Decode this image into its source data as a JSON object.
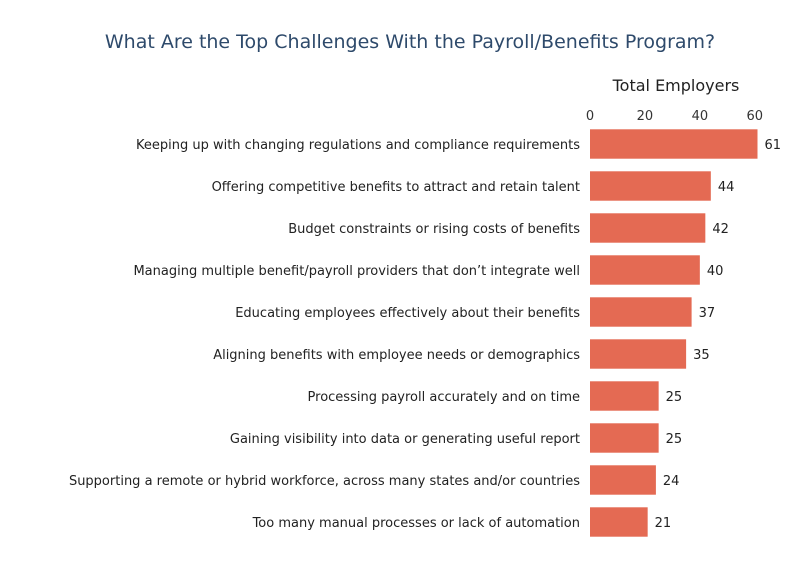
{
  "chart_data": {
    "type": "bar",
    "orientation": "horizontal",
    "title": "What Are the Top Challenges With the Payroll/Benefits Program?",
    "xlabel": "Total Employers",
    "ylabel": "",
    "xlim": [
      0,
      63
    ],
    "xticks": [
      0,
      20,
      40,
      60
    ],
    "x_axis_position": "top",
    "grid": false,
    "legend": "none",
    "bar_color": "#e46a53",
    "categories": [
      "Keeping up with changing regulations and compliance requirements",
      "Offering competitive benefits to attract and retain talent",
      "Budget constraints or rising costs of benefits",
      "Managing multiple benefit/payroll providers that don’t integrate well",
      "Educating employees effectively about their benefits",
      "Aligning benefits with employee needs or demographics",
      "Processing payroll accurately and on time",
      "Gaining visibility into data or generating useful report",
      "Supporting a remote or hybrid workforce, across many states and/or countries",
      "Too many manual processes or lack of automation"
    ],
    "values": [
      61,
      44,
      42,
      40,
      37,
      35,
      25,
      25,
      24,
      21
    ]
  }
}
